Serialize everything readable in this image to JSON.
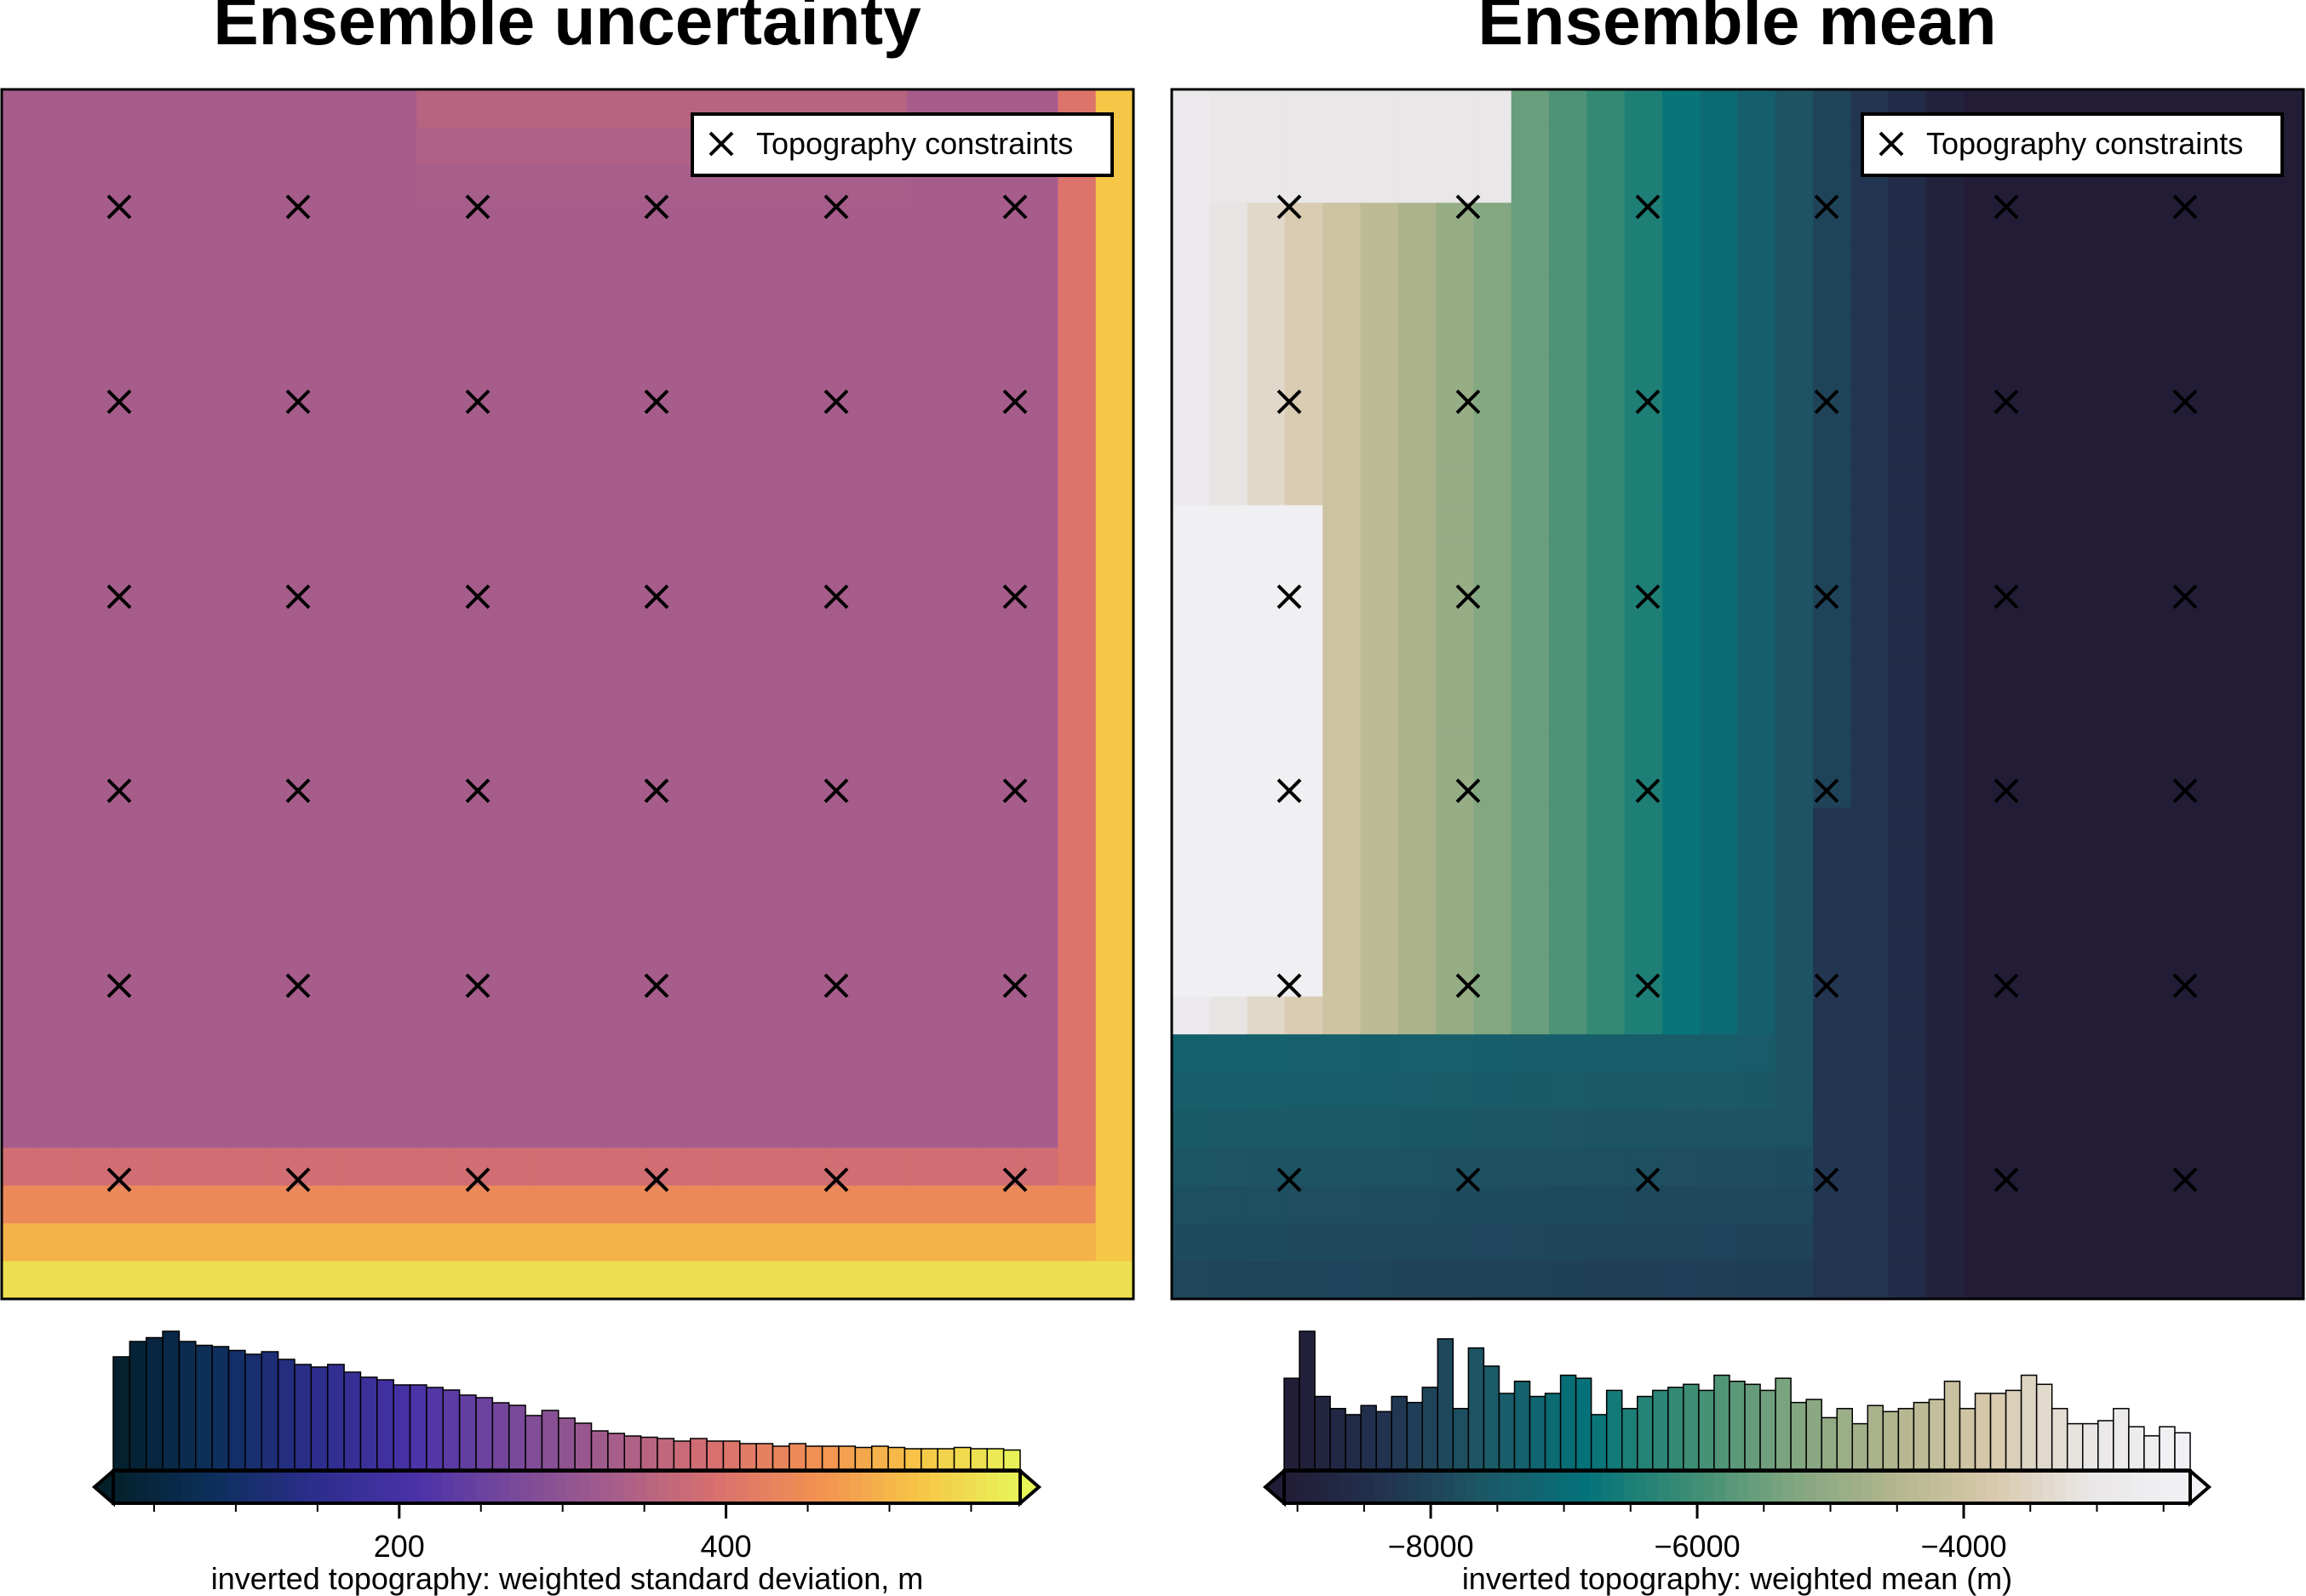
{
  "figure": {
    "panels": [
      {
        "title": "Ensemble uncertainty"
      },
      {
        "title": "Ensemble mean"
      }
    ]
  },
  "chart_data": [
    {
      "type": "heatmap",
      "title": "Ensemble uncertainty",
      "legend": {
        "label": "Topography constraints",
        "marker": "x",
        "placement": "top-right"
      },
      "colormap": "thermal (navy → purple → orange → yellow)",
      "colors": [
        "#04202b",
        "#0d2f5c",
        "#2c2e8c",
        "#4a32a8",
        "#7a4a9a",
        "#a85e8a",
        "#d9716e",
        "#f29152",
        "#f7c546",
        "#e7f558"
      ],
      "constraints_grid": {
        "columns": 6,
        "rows": 6
      },
      "colorbar": {
        "label": "inverted topography: weighted standard deviation, m",
        "range": [
          25,
          580
        ],
        "ticks": [
          200,
          400
        ],
        "tick_labels": [
          "200",
          "400"
        ],
        "extend": "both",
        "histogram": [
          88,
          100,
          103,
          108,
          100,
          97,
          96,
          93,
          90,
          92,
          86,
          82,
          80,
          82,
          76,
          72,
          70,
          66,
          66,
          64,
          62,
          58,
          56,
          52,
          50,
          42,
          46,
          40,
          36,
          30,
          28,
          26,
          25,
          24,
          22,
          24,
          22,
          22,
          20,
          20,
          18,
          20,
          18,
          18,
          18,
          17,
          18,
          17,
          16,
          16,
          16,
          17,
          16,
          16,
          15
        ]
      }
    },
    {
      "type": "heatmap",
      "title": "Ensemble mean",
      "legend": {
        "label": "Topography constraints",
        "marker": "x",
        "placement": "top-right"
      },
      "colormap": "rain (dark navy → teal → green → tan → white)",
      "colors": [
        "#221c36",
        "#223350",
        "#1c5866",
        "#04737a",
        "#3a8c74",
        "#7da57f",
        "#b0b48d",
        "#d7c8aa",
        "#e9e6e6",
        "#f2f2f6"
      ],
      "constraints_grid": {
        "columns": 6,
        "rows": 6
      },
      "colorbar": {
        "label": "inverted topography: weighted mean (m)",
        "range": [
          -9100,
          -2300
        ],
        "ticks": [
          -8000,
          -6000,
          -4000
        ],
        "tick_labels": [
          "−8000",
          "−6000",
          "−4000"
        ],
        "extend": "both",
        "histogram": [
          60,
          91,
          48,
          40,
          36,
          42,
          38,
          48,
          44,
          54,
          86,
          40,
          80,
          68,
          50,
          58,
          48,
          50,
          62,
          60,
          36,
          52,
          40,
          48,
          52,
          54,
          56,
          52,
          62,
          58,
          56,
          52,
          60,
          44,
          46,
          34,
          40,
          30,
          42,
          38,
          40,
          44,
          46,
          58,
          40,
          50,
          50,
          52,
          62,
          56,
          40,
          30,
          30,
          32,
          40,
          28,
          22,
          28,
          24
        ]
      }
    }
  ]
}
